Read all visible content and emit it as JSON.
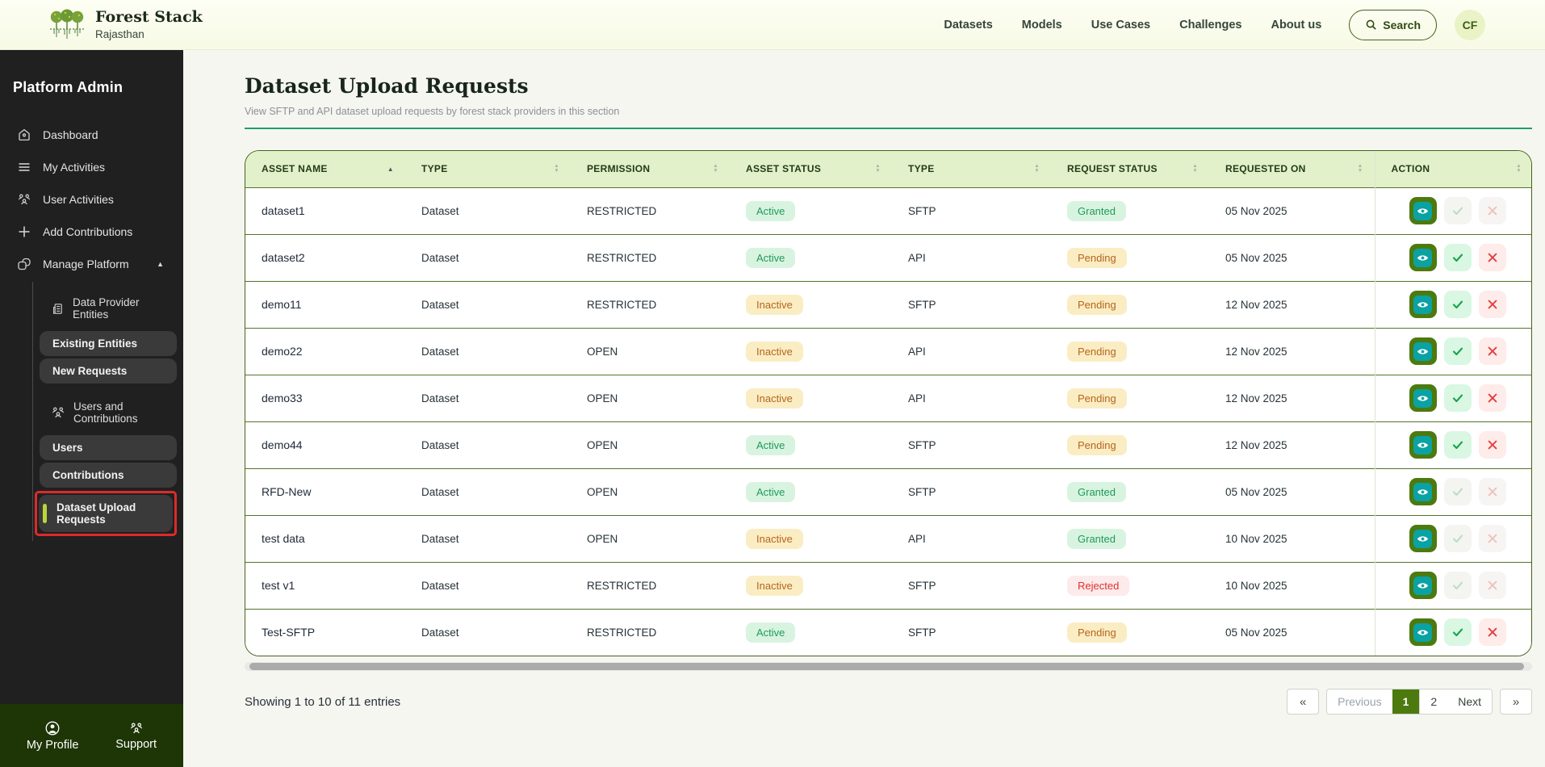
{
  "colors": {
    "accent_green": "#4c7a0f",
    "teal_icon": "#0aa2a2",
    "table_border_green": "#44631f",
    "table_header_bg": "#e2f1ca",
    "underline_green": "#1f9e72",
    "badge_green_bg": "#d8f4e0",
    "badge_green_text": "#21995a",
    "badge_yellow_bg": "#fbedc3",
    "badge_yellow_text": "#b5651d",
    "badge_red_bg": "#fdeaea",
    "badge_red_text": "#e03131",
    "annotation_red": "#dd2a2a",
    "sidebar_bg": "#202020",
    "sidebar_footer_bg": "#1e3606"
  },
  "header": {
    "brand": {
      "title": "Forest Stack",
      "subtitle": "Rajasthan",
      "logo_icon": "forest-trees-logo"
    },
    "nav": [
      {
        "label": "Datasets"
      },
      {
        "label": "Models"
      },
      {
        "label": "Use Cases"
      },
      {
        "label": "Challenges"
      },
      {
        "label": "About us"
      }
    ],
    "search": {
      "label": "Search",
      "icon": "search-icon"
    },
    "avatar": {
      "initials": "CF"
    }
  },
  "sidebar": {
    "title": "Platform Admin",
    "items": [
      {
        "label": "Dashboard",
        "icon": "home-icon"
      },
      {
        "label": "My Activities",
        "icon": "menu-icon"
      },
      {
        "label": "User Activities",
        "icon": "users-icon"
      },
      {
        "label": "Add Contributions",
        "icon": "plus-icon"
      },
      {
        "label": "Manage Platform",
        "icon": "platform-icon",
        "expanded": true,
        "chevron": "chevron-up-icon"
      }
    ],
    "manage_sections": [
      {
        "label": "Data Provider Entities",
        "icon": "building-icon",
        "links": [
          {
            "label": "Existing Entities"
          },
          {
            "label": "New Requests"
          }
        ]
      },
      {
        "label": "Users and Contributions",
        "icon": "users-icon",
        "links": [
          {
            "label": "Users"
          },
          {
            "label": "Contributions"
          },
          {
            "label": "Dataset Upload Requests",
            "active": true,
            "annotated": true
          }
        ]
      }
    ],
    "footer": [
      {
        "label": "My Profile",
        "icon": "profile-icon"
      },
      {
        "label": "Support",
        "icon": "users-icon"
      }
    ]
  },
  "main": {
    "title": "Dataset Upload Requests",
    "subtitle": "View SFTP and API dataset upload requests by forest stack providers in this section",
    "table": {
      "columns": [
        {
          "label": "ASSET NAME",
          "sorted": true
        },
        {
          "label": "TYPE"
        },
        {
          "label": "PERMISSION"
        },
        {
          "label": "ASSET STATUS"
        },
        {
          "label": "TYPE"
        },
        {
          "label": "REQUEST STATUS"
        },
        {
          "label": "REQUESTED ON"
        },
        {
          "label": "ACTION"
        }
      ],
      "rows": [
        {
          "asset_name": "dataset1",
          "type": "Dataset",
          "permission": "RESTRICTED",
          "asset_status": "Active",
          "upload_type": "SFTP",
          "request_status": "Granted",
          "requested_on": "05 Nov 2025",
          "actions_enabled": false
        },
        {
          "asset_name": "dataset2",
          "type": "Dataset",
          "permission": "RESTRICTED",
          "asset_status": "Active",
          "upload_type": "API",
          "request_status": "Pending",
          "requested_on": "05 Nov 2025",
          "actions_enabled": true
        },
        {
          "asset_name": "demo11",
          "type": "Dataset",
          "permission": "RESTRICTED",
          "asset_status": "Inactive",
          "upload_type": "SFTP",
          "request_status": "Pending",
          "requested_on": "12 Nov 2025",
          "actions_enabled": true
        },
        {
          "asset_name": "demo22",
          "type": "Dataset",
          "permission": "OPEN",
          "asset_status": "Inactive",
          "upload_type": "API",
          "request_status": "Pending",
          "requested_on": "12 Nov 2025",
          "actions_enabled": true
        },
        {
          "asset_name": "demo33",
          "type": "Dataset",
          "permission": "OPEN",
          "asset_status": "Inactive",
          "upload_type": "API",
          "request_status": "Pending",
          "requested_on": "12 Nov 2025",
          "actions_enabled": true
        },
        {
          "asset_name": "demo44",
          "type": "Dataset",
          "permission": "OPEN",
          "asset_status": "Active",
          "upload_type": "SFTP",
          "request_status": "Pending",
          "requested_on": "12 Nov 2025",
          "actions_enabled": true
        },
        {
          "asset_name": "RFD-New",
          "type": "Dataset",
          "permission": "OPEN",
          "asset_status": "Active",
          "upload_type": "SFTP",
          "request_status": "Granted",
          "requested_on": "05 Nov 2025",
          "actions_enabled": false
        },
        {
          "asset_name": "test data",
          "type": "Dataset",
          "permission": "OPEN",
          "asset_status": "Inactive",
          "upload_type": "API",
          "request_status": "Granted",
          "requested_on": "10 Nov 2025",
          "actions_enabled": false
        },
        {
          "asset_name": "test v1",
          "type": "Dataset",
          "permission": "RESTRICTED",
          "asset_status": "Inactive",
          "upload_type": "SFTP",
          "request_status": "Rejected",
          "requested_on": "10 Nov 2025",
          "actions_enabled": false
        },
        {
          "asset_name": "Test-SFTP",
          "type": "Dataset",
          "permission": "RESTRICTED",
          "asset_status": "Active",
          "upload_type": "SFTP",
          "request_status": "Pending",
          "requested_on": "05 Nov 2025",
          "actions_enabled": true
        }
      ]
    },
    "footer": {
      "showing_text": "Showing 1 to 10 of 11 entries",
      "pagination": {
        "first_label": "«",
        "previous_label": "Previous",
        "pages": [
          "1",
          "2"
        ],
        "active_page": "1",
        "next_label": "Next",
        "last_label": "»"
      }
    }
  }
}
